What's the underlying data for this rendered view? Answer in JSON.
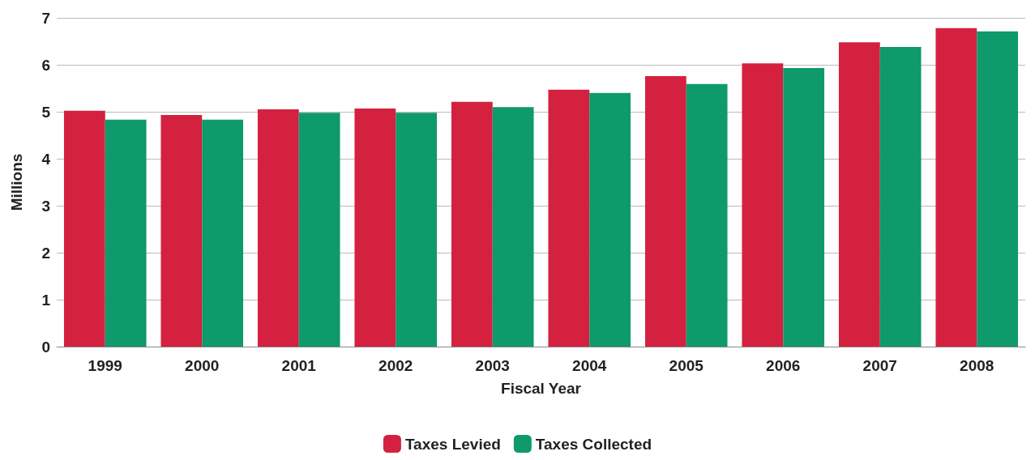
{
  "chart_data": {
    "type": "bar",
    "xlabel": "Fiscal Year",
    "ylabel": "Millions",
    "categories": [
      "1999",
      "2000",
      "2001",
      "2002",
      "2003",
      "2004",
      "2005",
      "2006",
      "2007",
      "2008"
    ],
    "series": [
      {
        "name": "Taxes Levied",
        "color": "#d3213f",
        "values": [
          5.02,
          4.93,
          5.05,
          5.07,
          5.21,
          5.47,
          5.76,
          6.03,
          6.48,
          6.78
        ]
      },
      {
        "name": "Taxes Collected",
        "color": "#0e9a6a",
        "values": [
          4.83,
          4.83,
          4.98,
          4.98,
          5.1,
          5.4,
          5.59,
          5.93,
          6.38,
          6.71
        ]
      }
    ],
    "ylim": [
      0,
      7
    ],
    "yticks": [
      0,
      1,
      2,
      3,
      4,
      5,
      6,
      7
    ],
    "grid": "y",
    "legend": "bottom"
  }
}
